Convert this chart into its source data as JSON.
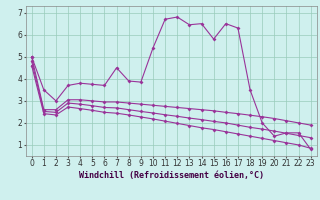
{
  "xlabel": "Windchill (Refroidissement éolien,°C)",
  "bg_color": "#cff0ee",
  "grid_color": "#99ccbb",
  "line_color": "#993399",
  "xlim": [
    -0.5,
    23.5
  ],
  "ylim": [
    0.5,
    7.3
  ],
  "xticks": [
    0,
    1,
    2,
    3,
    4,
    5,
    6,
    7,
    8,
    9,
    10,
    11,
    12,
    13,
    14,
    15,
    16,
    17,
    18,
    19,
    20,
    21,
    22,
    23
  ],
  "yticks": [
    1,
    2,
    3,
    4,
    5,
    6,
    7
  ],
  "line1_y": [
    5.0,
    3.5,
    3.0,
    3.7,
    3.8,
    3.75,
    3.7,
    4.5,
    3.9,
    3.85,
    5.4,
    6.7,
    6.8,
    6.45,
    6.5,
    5.8,
    6.5,
    6.3,
    3.5,
    2.0,
    1.4,
    1.55,
    1.55,
    0.8
  ],
  "line2_y": [
    5.0,
    2.6,
    2.6,
    3.05,
    3.05,
    3.0,
    2.95,
    2.95,
    2.9,
    2.85,
    2.8,
    2.75,
    2.7,
    2.65,
    2.6,
    2.55,
    2.48,
    2.42,
    2.35,
    2.28,
    2.2,
    2.1,
    2.0,
    1.9
  ],
  "line3_y": [
    4.8,
    2.52,
    2.48,
    2.9,
    2.85,
    2.78,
    2.7,
    2.68,
    2.6,
    2.52,
    2.45,
    2.37,
    2.3,
    2.22,
    2.15,
    2.07,
    2.0,
    1.9,
    1.8,
    1.72,
    1.63,
    1.53,
    1.43,
    1.33
  ],
  "line4_y": [
    4.6,
    2.42,
    2.36,
    2.72,
    2.65,
    2.57,
    2.48,
    2.44,
    2.36,
    2.27,
    2.18,
    2.08,
    1.98,
    1.88,
    1.78,
    1.7,
    1.6,
    1.5,
    1.4,
    1.3,
    1.2,
    1.1,
    1.0,
    0.85
  ],
  "markersize": 2.0,
  "linewidth": 0.8,
  "tick_fontsize": 5.5,
  "label_fontsize": 6.0
}
